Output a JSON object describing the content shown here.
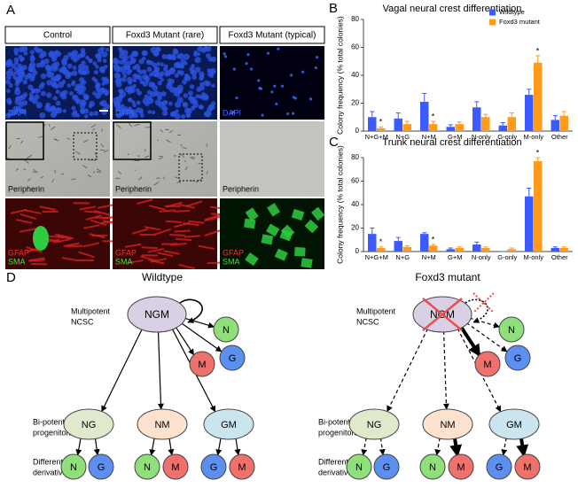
{
  "panel_a": {
    "label": "A",
    "columns": [
      "Control",
      "Foxd3 Mutant (rare)",
      "Foxd3 Mutant (typical)"
    ],
    "stain_labels": [
      "DAPI",
      "Peripherin",
      "GFAP",
      "SMA"
    ]
  },
  "chart_data": [
    {
      "type": "bar",
      "panel_label": "B",
      "title": "Vagal neural crest differentiation",
      "y_label": "Colony frequency (% total colonies)",
      "categories": [
        "N+G+M",
        "N+G",
        "N+M",
        "G+M",
        "N-only",
        "G-only",
        "M-only",
        "Other"
      ],
      "series": [
        {
          "name": "Wildtype",
          "color": "#3b5bff",
          "values": [
            10,
            9,
            21,
            3,
            17,
            4,
            26,
            8
          ],
          "errors": [
            4,
            4,
            6,
            1.5,
            4,
            2,
            4,
            3
          ]
        },
        {
          "name": "Foxd3 mutant",
          "color": "#ff9a1a",
          "values": [
            2,
            5,
            5,
            5,
            10,
            10,
            49,
            11
          ],
          "errors": [
            1,
            2,
            2,
            1.5,
            2,
            3,
            5,
            3
          ]
        }
      ],
      "significance": [
        "*",
        null,
        "*",
        null,
        null,
        null,
        "*",
        null
      ],
      "ylim": [
        0,
        80
      ],
      "yticks": [
        0,
        20,
        40,
        60,
        80
      ],
      "legend": "upper right"
    },
    {
      "type": "bar",
      "panel_label": "C",
      "title": "Trunk neural crest differentiation",
      "y_label": "Colony frequency (% total colonies)",
      "categories": [
        "N+G+M",
        "N+G",
        "N+M",
        "G+M",
        "N-only",
        "G-only",
        "M-only",
        "Other"
      ],
      "series": [
        {
          "name": "Wildtype",
          "color": "#3b5bff",
          "values": [
            15,
            9,
            15,
            2,
            6,
            0,
            47,
            3
          ],
          "errors": [
            5,
            3,
            1,
            1,
            2,
            0,
            7,
            1
          ]
        },
        {
          "name": "Foxd3 mutant",
          "color": "#ff9a1a",
          "values": [
            3,
            4,
            5,
            3,
            3,
            2,
            77,
            3
          ],
          "errors": [
            1,
            1,
            1,
            1,
            1,
            1,
            3,
            1
          ]
        }
      ],
      "significance": [
        "*",
        null,
        "*",
        null,
        null,
        null,
        "*",
        null
      ],
      "ylim": [
        0,
        80
      ],
      "yticks": [
        0,
        20,
        40,
        60,
        80
      ]
    }
  ],
  "panel_d": {
    "label": "D",
    "diagrams": [
      {
        "title": "Wildtype",
        "row_labels": [
          [
            "Multipotent",
            "NCSC"
          ],
          [
            "Bi-potent",
            "progenitors"
          ],
          [
            "Differentiated",
            "derivatives"
          ]
        ],
        "nodes": [
          "NGM",
          "N",
          "M",
          "G",
          "NG",
          "NM",
          "GM",
          "N",
          "G",
          "N",
          "M",
          "G",
          "M"
        ]
      },
      {
        "title": "Foxd3 mutant",
        "row_labels": [
          [
            "Multipotent",
            "NCSC"
          ],
          [
            "Bi-potent",
            "progenitors"
          ],
          [
            "Differentiated",
            "derivatives"
          ]
        ],
        "nodes": [
          "NGM",
          "N",
          "M",
          "G",
          "NG",
          "NM",
          "GM",
          "N",
          "G",
          "N",
          "M",
          "G",
          "M"
        ]
      }
    ]
  }
}
